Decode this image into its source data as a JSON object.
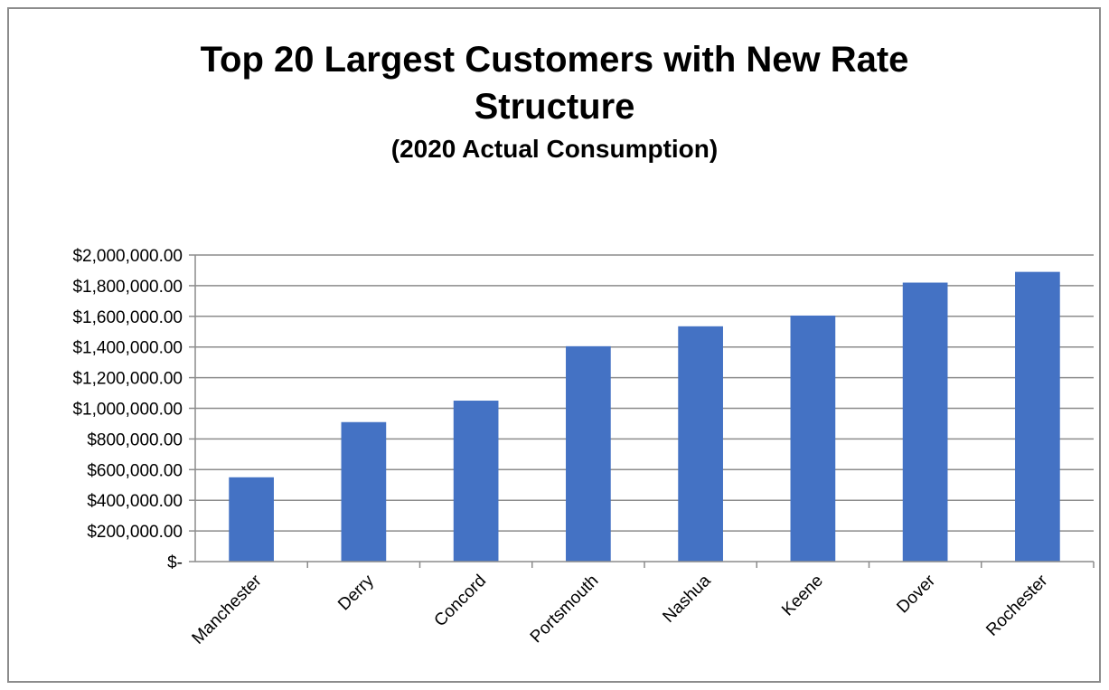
{
  "chart_data": {
    "type": "bar",
    "title_line1": "Top 20 Largest Customers with New Rate",
    "title_line2": "Structure",
    "subtitle": "(2020 Actual Consumption)",
    "categories": [
      "Manchester",
      "Derry",
      "Concord",
      "Portsmouth",
      "Nashua",
      "Keene",
      "Dover",
      "Rochester"
    ],
    "values": [
      550000,
      910000,
      1050000,
      1405000,
      1535000,
      1605000,
      1820000,
      1890000
    ],
    "ylim": [
      0,
      2000000
    ],
    "y_ticks": [
      0,
      200000,
      400000,
      600000,
      800000,
      1000000,
      1200000,
      1400000,
      1600000,
      1800000,
      2000000
    ],
    "y_tick_labels": [
      "$-",
      "$200,000.00",
      "$400,000.00",
      "$600,000.00",
      "$800,000.00",
      "$1,000,000.00",
      "$1,200,000.00",
      "$1,400,000.00",
      "$1,600,000.00",
      "$1,800,000.00",
      "$2,000,000.00"
    ],
    "grid": true,
    "legend": "none",
    "bar_color": "#4472c4",
    "grid_color": "#8c8c8c"
  }
}
